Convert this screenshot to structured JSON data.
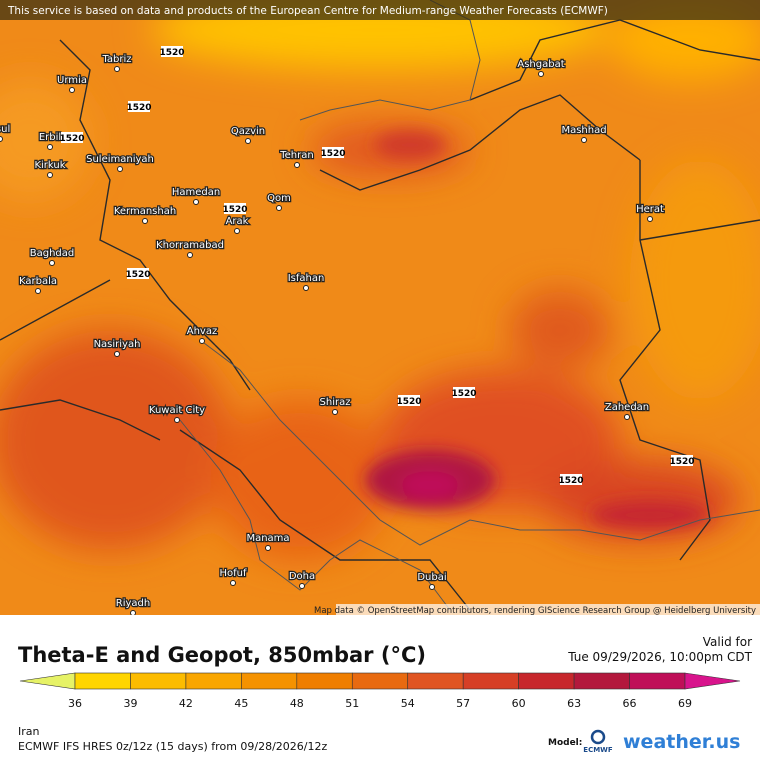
{
  "header": {
    "banner": "This service is based on data and products of the European Centre for Medium-range Weather Forecasts (ECMWF)",
    "attribution": "Map data © OpenStreetMap contributors, rendering GIScience Research Group @ Heidelberg University"
  },
  "map": {
    "cities": [
      "Tabriz",
      "Urmia",
      "osul",
      "Erbil",
      "Kirkuk",
      "Suleimaniyah",
      "Qazvin",
      "Tehran",
      "Hamedan",
      "Kermanshah",
      "Qom",
      "Arak",
      "Khorramabad",
      "Baghdad",
      "Karbala",
      "Isfahan",
      "Nasiriyah",
      "Ahvaz",
      "Shiraz",
      "Kuwait City",
      "Manama",
      "Hofuf",
      "Doha",
      "Riyadh",
      "Dubai",
      "Ashgabat",
      "Mashhad",
      "Herat",
      "Zahedan"
    ],
    "geopotential_labels": [
      1520,
      1520,
      1520,
      1520,
      1520,
      1520,
      1520,
      1520,
      1520,
      1520
    ]
  },
  "footer": {
    "title": "Theta-E and Geopot, 850mbar (°C)",
    "valid_label": "Valid for",
    "valid_time": "Tue 09/29/2026, 10:00pm CDT",
    "region": "Iran",
    "model_run": "ECMWF IFS HRES 0z/12z (15 days) from  09/28/2026/12z",
    "model_label": "Model:",
    "model_logo": "ECMWF",
    "brand": "weather.us"
  },
  "legend": {
    "ticks": [
      36,
      39,
      42,
      45,
      48,
      51,
      54,
      57,
      60,
      63,
      66,
      69
    ],
    "colors": [
      "#e6f266",
      "#ffd500",
      "#fcbc00",
      "#f9a600",
      "#f59200",
      "#ef7e00",
      "#e86a10",
      "#e05522",
      "#d63f26",
      "#c7272c",
      "#b3183c",
      "#bf0f58",
      "#d8148c"
    ]
  }
}
